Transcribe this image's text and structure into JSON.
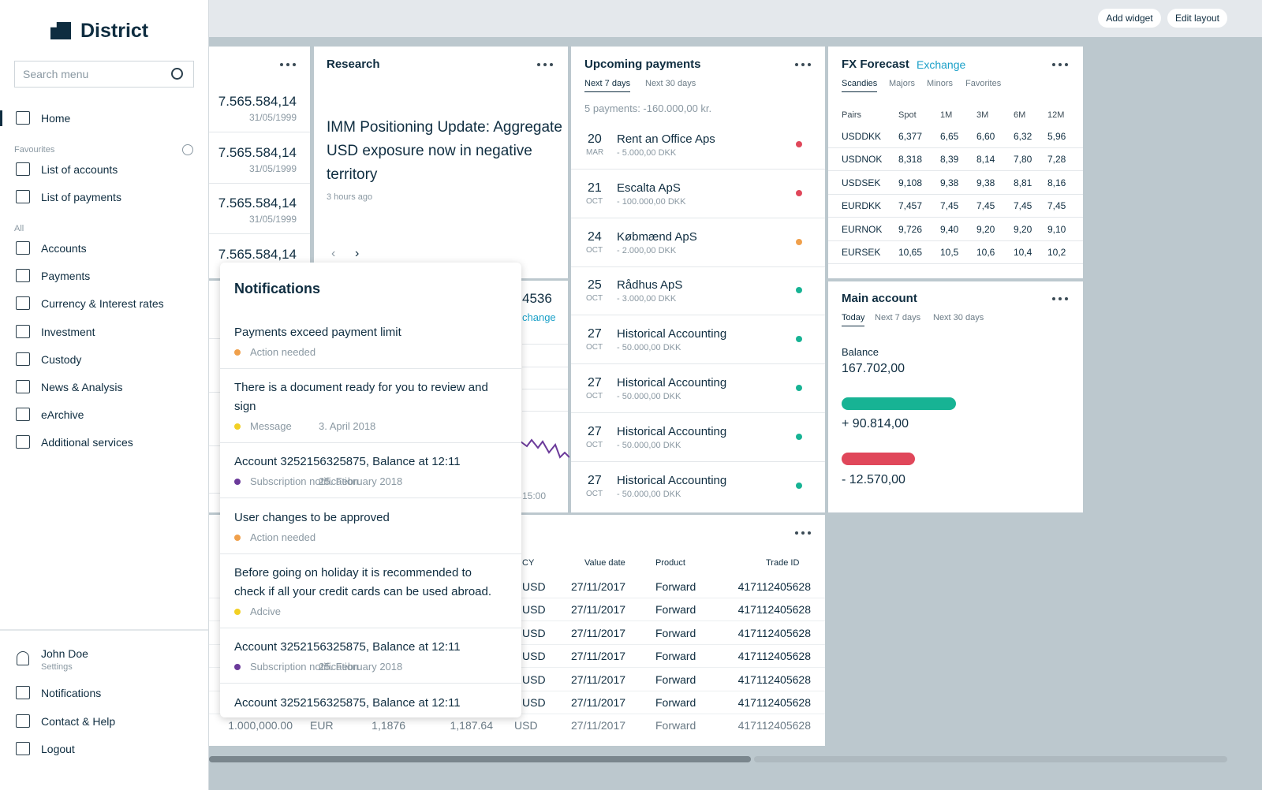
{
  "sidebar": {
    "brand": "District",
    "search_placeholder": "Search menu",
    "home": "Home",
    "favourites_label": "Favourites",
    "favourites": [
      "List of accounts",
      "List of payments"
    ],
    "all_label": "All",
    "all_items": [
      "Accounts",
      "Payments",
      "Currency & Interest rates",
      "Investment",
      "Custody",
      "News & Analysis",
      "eArchive",
      "Additional services"
    ],
    "user": {
      "name": "John Doe",
      "settings": "Settings"
    },
    "bottom_items": [
      "Notifications",
      "Contact & Help",
      "Logout"
    ]
  },
  "topbar": {
    "buttons": [
      "Add widget",
      "Edit layout"
    ]
  },
  "accounts_widget": {
    "rows": [
      {
        "amount": "7.565.584,14",
        "date": "31/05/1999"
      },
      {
        "amount": "7.565.584,14",
        "date": "31/05/1999"
      },
      {
        "amount": "7.565.584,14",
        "date": "31/05/1999"
      },
      {
        "amount": "7.565.584,14"
      }
    ]
  },
  "research": {
    "title": "Research",
    "headline": "IMM Positioning Update: Aggregate USD exposure now in negative territory",
    "time": "3 hours ago"
  },
  "exchange_widget": {
    "value": "4536",
    "link": "change",
    "time": "15:00"
  },
  "upcoming": {
    "title": "Upcoming payments",
    "tabs": [
      "Next 7 days",
      "Next 30 days"
    ],
    "summary": "5 payments: -160.000,00 kr.",
    "items": [
      {
        "day": "20",
        "month": "MAR",
        "name": "Rent an Office Aps",
        "amount": "- 5.000,00 DKK",
        "color": "#e0475a"
      },
      {
        "day": "21",
        "month": "OCT",
        "name": "Escalta ApS",
        "amount": "- 100.000,00 DKK",
        "color": "#e0475a"
      },
      {
        "day": "24",
        "month": "OCT",
        "name": "Købmænd ApS",
        "amount": "- 2.000,00 DKK",
        "color": "#f0a04b"
      },
      {
        "day": "25",
        "month": "OCT",
        "name": "Rådhus ApS",
        "amount": "- 3.000,00 DKK",
        "color": "#17b394"
      },
      {
        "day": "27",
        "month": "OCT",
        "name": "Historical Accounting",
        "amount": "- 50.000,00 DKK",
        "color": "#17b394"
      },
      {
        "day": "27",
        "month": "OCT",
        "name": "Historical Accounting",
        "amount": "- 50.000,00 DKK",
        "color": "#17b394"
      },
      {
        "day": "27",
        "month": "OCT",
        "name": "Historical Accounting",
        "amount": "- 50.000,00 DKK",
        "color": "#17b394"
      },
      {
        "day": "27",
        "month": "OCT",
        "name": "Historical Accounting",
        "amount": "- 50.000,00 DKK",
        "color": "#17b394"
      }
    ]
  },
  "fx": {
    "title": "FX Forecast",
    "link": "Exchange",
    "tabs": [
      "Scandies",
      "Majors",
      "Minors",
      "Favorites"
    ],
    "columns": [
      "Pairs",
      "Spot",
      "1M",
      "3M",
      "6M",
      "12M"
    ],
    "rows": [
      [
        "USDDKK",
        "6,377",
        "6,65",
        "6,60",
        "6,32",
        "5,96"
      ],
      [
        "USDNOK",
        "8,318",
        "8,39",
        "8,14",
        "7,80",
        "7,28"
      ],
      [
        "USDSEK",
        "9,108",
        "9,38",
        "9,38",
        "8,81",
        "8,16"
      ],
      [
        "EURDKK",
        "7,457",
        "7,45",
        "7,45",
        "7,45",
        "7,45"
      ],
      [
        "EURNOK",
        "9,726",
        "9,40",
        "9,20",
        "9,20",
        "9,10"
      ],
      [
        "EURSEK",
        "10,65",
        "10,5",
        "10,6",
        "10,4",
        "10,2"
      ]
    ]
  },
  "main_account": {
    "title": "Main account",
    "tabs": [
      "Today",
      "Next 7 days",
      "Next 30 days"
    ],
    "balance_label": "Balance",
    "balance": "167.702,00",
    "positive": "+ 90.814,00",
    "negative": "- 12.570,00"
  },
  "trades": {
    "columns": [
      "CY",
      "Value date",
      "Product",
      "Trade ID"
    ],
    "rows": [
      [
        "USD",
        "27/11/2017",
        "Forward",
        "417112405628"
      ],
      [
        "USD",
        "27/11/2017",
        "Forward",
        "417112405628"
      ],
      [
        "USD",
        "27/11/2017",
        "Forward",
        "417112405628"
      ],
      [
        "USD",
        "27/11/2017",
        "Forward",
        "417112405628"
      ],
      [
        "USD",
        "27/11/2017",
        "Forward",
        "417112405628"
      ],
      [
        "USD",
        "27/11/2017",
        "Forward",
        "417112405628"
      ]
    ],
    "last_row": [
      "1.000,000.00",
      "EUR",
      "1,1876",
      "1,187.64",
      "USD",
      "27/11/2017",
      "Forward",
      "417112405628"
    ]
  },
  "notifications": {
    "title": "Notifications",
    "items": [
      {
        "text": "Payments exceed payment limit",
        "tag": "Action needed",
        "color": "#f0a04b"
      },
      {
        "text": "There is a document ready for you to review and sign",
        "tag": "Message",
        "date": "3. April 2018",
        "color": "#f2d024"
      },
      {
        "text": "Account 3252156325875, Balance at 12:11",
        "tag": "Subscription notification",
        "date": "25. February 2018",
        "color": "#6b3a9a"
      },
      {
        "text": "User changes to be approved",
        "tag": "Action needed",
        "color": "#f0a04b"
      },
      {
        "text": "Before going on holiday it is recommended to check if all your credit cards can be used abroad.",
        "tag": "Adcive",
        "color": "#f2d024"
      },
      {
        "text": "Account 3252156325875, Balance at 12:11",
        "tag": "Subscription notification",
        "date": "25. February 2018",
        "color": "#6b3a9a"
      },
      {
        "text": "Account 3252156325875, Balance at 12:11"
      }
    ]
  }
}
